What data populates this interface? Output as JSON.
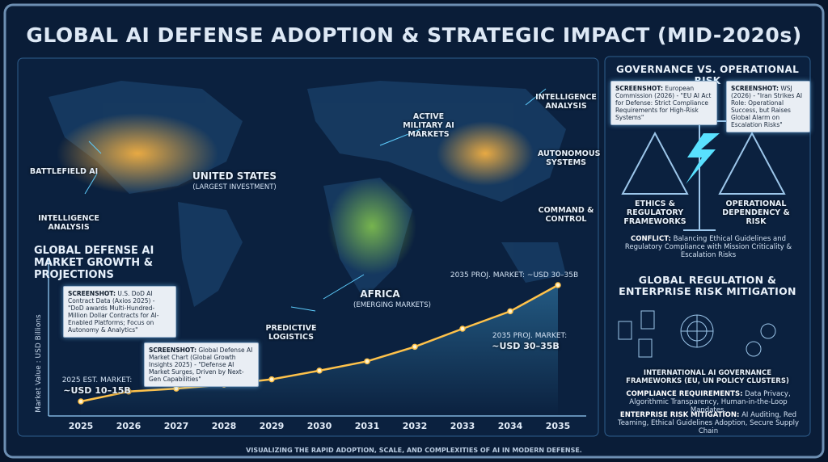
{
  "title": "GLOBAL AI DEFENSE ADOPTION & STRATEGIC IMPACT (MID-2020s)",
  "map": {
    "battlefield": "BATTLEFIELD AI",
    "intel_left": "INTELLIGENCE ANALYSIS",
    "us": "UNITED STATES",
    "us_note": "(LARGEST INVESTMENT)",
    "active": "ACTIVE MILITARY AI MARKETS",
    "intel_right": "INTELLIGENCE ANALYSIS",
    "autonomous": "AUTONOMOUS SYSTEMS",
    "command": "COMMAND & CONTROL",
    "africa": "AFRICA",
    "africa_note": "(EMERGING MARKETS)",
    "logistics": "PREDICTIVE LOGISTICS"
  },
  "chart_data": {
    "type": "line",
    "title": "GLOBAL DEFENSE AI MARKET GROWTH & PROJECTIONS",
    "y_label": "Market Value : USD Billions",
    "categories": [
      "2025",
      "2026",
      "2027",
      "2028",
      "2029",
      "2030",
      "2031",
      "2032",
      "2033",
      "2034",
      "2035"
    ],
    "values": [
      12.5,
      14.2,
      14.7,
      15.4,
      16.3,
      17.8,
      19.4,
      21.9,
      25,
      28,
      32.5
    ],
    "color": "#ffc24a",
    "ylim": [
      10,
      40
    ]
  },
  "annotations": {
    "est_2025_label": "2025 EST. MARKET:",
    "est_2025_value": "~USD 10–15B",
    "proj_top": "2035 PROJ. MARKET: ~USD 30–35B",
    "proj_mid_label": "2035 PROJ. MARKET:",
    "proj_mid_value": "~USD 30–35B",
    "shot1_tag": "SCREENSHOT:",
    "shot1_text": "U.S. DoD AI Contract Data (Axios 2025) - \"DoD awards Multi-Hundred-Million Dollar Contracts for AI-Enabled Platforms; Focus on Autonomy & Analytics\"",
    "shot2_tag": "SCREENSHOT:",
    "shot2_text": "Global Defense AI Market Chart (Global Growth Insights 2025) - \"Defense AI Market Surges, Driven by Next-Gen Capabilities\""
  },
  "governance": {
    "title": "GOVERNANCE VS. OPERATIONAL RISK",
    "shot1_tag": "SCREENSHOT:",
    "shot1_text": "European Commission (2026) - \"EU AI Act for Defense: Strict Compliance Requirements for High-Risk Systems\"",
    "shot2_tag": "SCREENSHOT:",
    "shot2_text": "WSJ (2026) - \"Iran Strikes AI Role: Operational Success, but Raises Global Alarm on Escalation Risks\"",
    "left": "ETHICS & REGULATORY FRAMEWORKS",
    "right": "OPERATIONAL DEPENDENCY & RISK",
    "conflict_tag": "CONFLICT:",
    "conflict_text": "Balancing Ethical Guidelines and Regulatory Compliance with Mission Criticality & Escalation Risks"
  },
  "regulation": {
    "title": "GLOBAL REGULATION & ENTERPRISE RISK MITIGATION",
    "frameworks": "INTERNATIONAL AI GOVERNANCE FRAMEWORKS (EU, UN POLICY CLUSTERS)",
    "compliance_tag": "COMPLIANCE REQUIREMENTS:",
    "compliance_text": "Data Privacy, Algorithmic Transparency, Human-in-the-Loop Mandates.",
    "risk_tag": "ENTERPRISE RISK MITIGATION:",
    "risk_text": "AI Auditing, Red Teaming, Ethical Guidelines Adoption, Secure Supply Chain"
  },
  "footer": "VISUALIZING THE RAPID ADOPTION, SCALE, AND COMPLEXITIES OF AI IN MODERN DEFENSE."
}
